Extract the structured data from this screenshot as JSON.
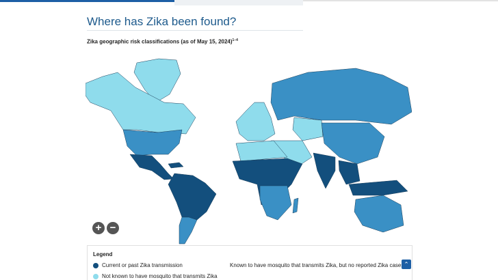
{
  "header": {
    "title": "Where has Zika been found?",
    "subtitle": "Zika geographic risk classifications (as of May 15, 2024)",
    "subtitle_note": "1–4"
  },
  "legend": {
    "title": "Legend",
    "items": [
      "Current or past Zika transmission",
      "Known to have mosquito that transmits Zika, but no reported Zika cases",
      "Not known to have mosquito that transmits Zika"
    ]
  }
}
